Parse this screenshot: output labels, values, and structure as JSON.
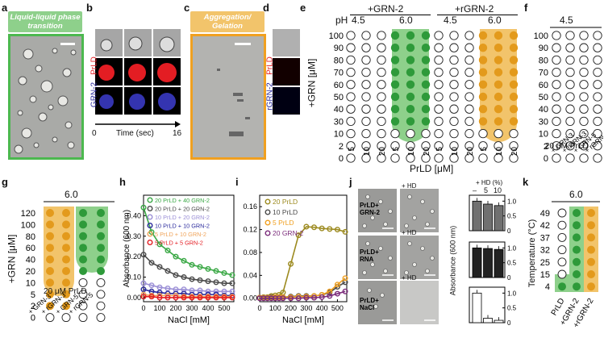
{
  "panel_labels": {
    "a": "a",
    "b": "b",
    "c": "c",
    "d": "d",
    "e": "e",
    "f": "f",
    "g": "g",
    "h": "h",
    "i": "i",
    "j": "j",
    "k": "k"
  },
  "colors": {
    "green": "#8ed08b",
    "green_dot": "#2e9a3a",
    "orange": "#f2c46b",
    "orange_dot": "#e39a1c",
    "red": "#e31d23",
    "blue": "#2a2a9c",
    "olive": "#9c8a1f",
    "purple": "#7b2c7b"
  },
  "panel_a": {
    "banner": "Liquid-liquid phase transition"
  },
  "panel_b": {
    "row_prld": "PrLD",
    "row_grn": "GRN-2",
    "time_label": "Time (sec)",
    "t_start": "0",
    "t_end": "16"
  },
  "panel_c": {
    "banner": "Aggregation/ Gelation"
  },
  "panel_d": {
    "row_prld": "PrLD",
    "row_grn": "rGRN-2"
  },
  "panel_e": {
    "group1": "+GRN-2",
    "group2": "+rGRN-2",
    "ph_label": "pH",
    "ph_values": [
      "4.5",
      "6.0",
      "4.5",
      "6.0"
    ],
    "ylabel": "+GRN [μM]",
    "yticks": [
      "100",
      "90",
      "80",
      "70",
      "60",
      "50",
      "40",
      "30",
      "10",
      "2",
      "0"
    ],
    "xticks": [
      "5",
      "10",
      "20"
    ],
    "xlabel": "PrLD [μM]"
  },
  "panel_f": {
    "ph": "4.5",
    "prld": "20 μM PrLD",
    "xlabels": [
      "+ GRN-3",
      "+ rGRN-3",
      "+ GRN-5",
      "+ rGRN-5"
    ]
  },
  "panel_g": {
    "ph": "6.0",
    "ylabel": "+GRN [μM]",
    "yticks": [
      "120",
      "100",
      "80",
      "60",
      "40",
      "20",
      "10",
      "5",
      "2",
      "0"
    ],
    "prld": "20 μM PrLD",
    "xlabels": [
      "+ GRN-3",
      "+ rGRN-3",
      "+ GRN-5",
      "+ rGRN-5"
    ]
  },
  "panel_h": {
    "chart_data": {
      "type": "line",
      "xlabel": "NaCl [mM]",
      "ylabel": "Absorbance (600 nm)",
      "x": [
        0,
        50,
        100,
        150,
        200,
        250,
        300,
        350,
        400,
        450,
        500,
        550
      ],
      "xticks": [
        "0",
        "100",
        "200",
        "300",
        "400",
        "500"
      ],
      "yticks": [
        "0.00",
        "0.10",
        "0.20",
        "0.30",
        "0.40"
      ],
      "ylim": [
        -0.02,
        0.5
      ],
      "series": [
        {
          "name": "20 PrLD + 40 GRN-2",
          "color": "#3aa845",
          "values": [
            0.44,
            0.32,
            0.26,
            0.23,
            0.2,
            0.18,
            0.16,
            0.15,
            0.14,
            0.13,
            0.12,
            0.11
          ]
        },
        {
          "name": "20 PrLD + 20 GRN-2",
          "color": "#4a4a4a",
          "values": [
            0.21,
            0.17,
            0.15,
            0.13,
            0.11,
            0.1,
            0.09,
            0.085,
            0.08,
            0.075,
            0.07,
            0.07
          ]
        },
        {
          "name": "10 PrLD + 20 GRN-2",
          "color": "#9b8fd6",
          "values": [
            0.07,
            0.06,
            0.05,
            0.045,
            0.04,
            0.04,
            0.035,
            0.035,
            0.03,
            0.03,
            0.03,
            0.03
          ]
        },
        {
          "name": "10 PrLD + 10 GRN-2",
          "color": "#2a2a9c",
          "values": [
            0.04,
            0.03,
            0.025,
            0.02,
            0.02,
            0.02,
            0.015,
            0.015,
            0.015,
            0.015,
            0.01,
            0.01
          ]
        },
        {
          "name": "5 PrLD  + 10 GRN-2",
          "color": "#f0a45a",
          "values": [
            0.015,
            0.01,
            0.01,
            0.01,
            0.01,
            0.005,
            0.005,
            0.005,
            0.005,
            0.005,
            0.005,
            0.005
          ]
        },
        {
          "name": "5 PrLD  + 5 GRN-2",
          "color": "#e31d23",
          "values": [
            0.005,
            0.005,
            0.0,
            0.0,
            0.0,
            0.0,
            0.0,
            0.0,
            0.0,
            0.0,
            0.0,
            0.0
          ]
        }
      ]
    }
  },
  "panel_i": {
    "chart_data": {
      "type": "line",
      "xlabel": "NaCl [mM]",
      "ylabel": "",
      "x": [
        0,
        25,
        50,
        75,
        100,
        125,
        150,
        200,
        250,
        300,
        350,
        400,
        450,
        500,
        550
      ],
      "xticks": [
        "0",
        "100",
        "200",
        "300",
        "400",
        "500"
      ],
      "yticks": [
        "0.00",
        "0.04",
        "0.08",
        "0.12",
        "0.16"
      ],
      "ylim": [
        -0.006,
        0.18
      ],
      "series": [
        {
          "name": "20 PrLD",
          "color": "#9c8a1f",
          "values": [
            0.001,
            0.002,
            0.002,
            0.004,
            0.005,
            0.006,
            0.01,
            0.06,
            0.11,
            0.125,
            0.124,
            0.122,
            0.121,
            0.12,
            0.116
          ]
        },
        {
          "name": "10 PrLD",
          "color": "#4a4a4a",
          "values": [
            0.001,
            0.001,
            0.001,
            0.002,
            0.002,
            0.002,
            0.002,
            0.003,
            0.004,
            0.004,
            0.004,
            0.006,
            0.01,
            0.02,
            0.028
          ]
        },
        {
          "name": "5 PrLD",
          "color": "#f0a020",
          "values": [
            0.001,
            0.001,
            0.001,
            0.001,
            0.002,
            0.002,
            0.002,
            0.002,
            0.003,
            0.003,
            0.004,
            0.006,
            0.012,
            0.024,
            0.035
          ]
        },
        {
          "name": "20 GRN-2",
          "color": "#7b2c7b",
          "values": [
            0.0,
            0.0,
            0.0,
            0.0,
            0.0,
            0.0,
            0.0,
            0.0,
            0.0,
            0.001,
            0.001,
            0.002,
            0.004,
            0.008,
            0.012
          ]
        }
      ]
    }
  },
  "panel_j": {
    "hd_header": "+ HD (%)",
    "hd_minus": "–",
    "hd_5": "5",
    "hd_10": "10",
    "hd": "+ HD",
    "rows": [
      {
        "label_a": "PrLD+",
        "label_b": "GRN-2"
      },
      {
        "label_a": "PrLD+",
        "label_b": "RNA"
      },
      {
        "label_a": "PrLD+",
        "label_b": "NaCl"
      }
    ],
    "ylabel": "Absorbance (600 nm)",
    "yticks": [
      "1.0",
      "0.5",
      "0"
    ],
    "chart_data": {
      "type": "bar",
      "categories": [
        "–",
        "5",
        "10"
      ],
      "series": [
        {
          "name": "PrLD+GRN-2",
          "values": [
            1.0,
            0.9,
            0.85
          ]
        },
        {
          "name": "PrLD+RNA",
          "values": [
            1.0,
            0.98,
            0.95
          ]
        },
        {
          "name": "PrLD+NaCl",
          "values": [
            1.0,
            0.15,
            0.08
          ]
        }
      ],
      "ylim": [
        0,
        1.2
      ]
    }
  },
  "panel_k": {
    "ph": "6.0",
    "ylabel": "Temperature (°C)",
    "yticks": [
      "49",
      "42",
      "37",
      "32",
      "25",
      "15",
      "4"
    ],
    "xlabels": [
      "PrLD",
      "+GRN-2",
      "+rGRN-2"
    ]
  }
}
